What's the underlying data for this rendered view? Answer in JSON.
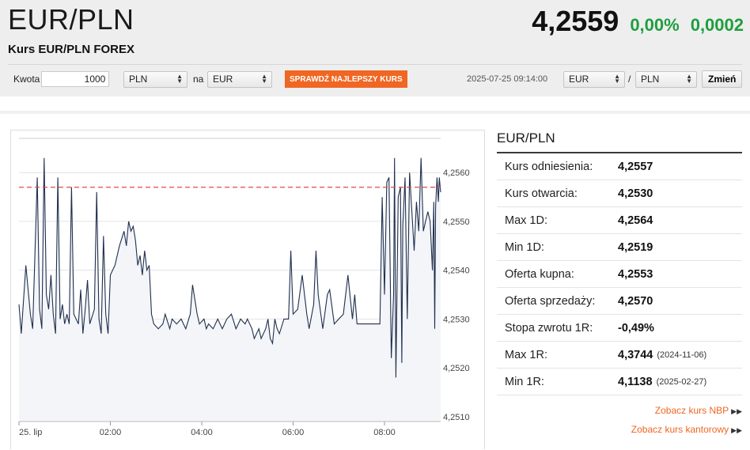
{
  "header": {
    "title": "EUR/PLN",
    "subtitle": "Kurs EUR/PLN FOREX",
    "price": "4,2559",
    "change_pct": "0,00%",
    "change_abs": "0,0002"
  },
  "converter": {
    "amount_label": "Kwota",
    "amount_value": "1000",
    "from_currency": "PLN",
    "to_label": "na",
    "to_currency": "EUR",
    "check_button": "SPRAWDŹ NAJLEPSZY KURS"
  },
  "pair_switch": {
    "timestamp": "2025-07-25 09:14:00",
    "base": "EUR",
    "slash": "/",
    "quote": "PLN",
    "change_button": "Zmień"
  },
  "side": {
    "title": "EUR/PLN",
    "rows": [
      {
        "label": "Kurs odniesienia:",
        "value": "4,2557",
        "date": ""
      },
      {
        "label": "Kurs otwarcia:",
        "value": "4,2530",
        "date": ""
      },
      {
        "label": "Max 1D:",
        "value": "4,2564",
        "date": ""
      },
      {
        "label": "Min 1D:",
        "value": "4,2519",
        "date": ""
      },
      {
        "label": "Oferta kupna:",
        "value": "4,2553",
        "date": ""
      },
      {
        "label": "Oferta sprzedaży:",
        "value": "4,2570",
        "date": ""
      },
      {
        "label": "Stopa zwrotu 1R:",
        "value": "-0,49%",
        "date": ""
      },
      {
        "label": "Max 1R:",
        "value": "4,3744",
        "date": "(2024-11-06)"
      },
      {
        "label": "Min 1R:",
        "value": "4,1138",
        "date": "(2025-02-27)"
      }
    ],
    "link_nbp": "Zobacz kurs NBP",
    "link_kantor": "Zobacz kurs kantorowy"
  },
  "colors": {
    "accent": "#f06623",
    "positive": "#1e9e3e",
    "line": "#1f2f4f",
    "reference": "#e0474c"
  },
  "chart_data": {
    "type": "line",
    "x_ticks": [
      "25. lip",
      "02:00",
      "04:00",
      "06:00",
      "08:00"
    ],
    "x_tick_hours": [
      0,
      2,
      4,
      6,
      8
    ],
    "y_ticks": [
      "4,2510",
      "4,2520",
      "4,2530",
      "4,2540",
      "4,2550",
      "4,2560"
    ],
    "y_tick_values": [
      4.251,
      4.252,
      4.253,
      4.254,
      4.255,
      4.256
    ],
    "ylim": [
      4.2509,
      4.2567
    ],
    "xlim": [
      0,
      9.23
    ],
    "reference_line": 4.2557,
    "series": [
      {
        "values": [
          [
            0.0,
            4.2533
          ],
          [
            0.05,
            4.2527
          ],
          [
            0.15,
            4.2541
          ],
          [
            0.25,
            4.2531
          ],
          [
            0.3,
            4.2528
          ],
          [
            0.4,
            4.2559
          ],
          [
            0.45,
            4.2532
          ],
          [
            0.5,
            4.2528
          ],
          [
            0.55,
            4.2563
          ],
          [
            0.6,
            4.2535
          ],
          [
            0.65,
            4.2532
          ],
          [
            0.7,
            4.2539
          ],
          [
            0.75,
            4.2531
          ],
          [
            0.8,
            4.2527
          ],
          [
            0.85,
            4.2559
          ],
          [
            0.9,
            4.253
          ],
          [
            0.95,
            4.2533
          ],
          [
            1.0,
            4.2529
          ],
          [
            1.05,
            4.2531
          ],
          [
            1.1,
            4.2529
          ],
          [
            1.15,
            4.2557
          ],
          [
            1.2,
            4.2531
          ],
          [
            1.3,
            4.2529
          ],
          [
            1.35,
            4.2536
          ],
          [
            1.4,
            4.2527
          ],
          [
            1.45,
            4.2532
          ],
          [
            1.5,
            4.2538
          ],
          [
            1.55,
            4.2529
          ],
          [
            1.65,
            4.2532
          ],
          [
            1.7,
            4.2556
          ],
          [
            1.75,
            4.253
          ],
          [
            1.8,
            4.2527
          ],
          [
            1.85,
            4.2547
          ],
          [
            1.9,
            4.2531
          ],
          [
            1.95,
            4.2527
          ],
          [
            2.0,
            4.2539
          ],
          [
            2.1,
            4.2541
          ],
          [
            2.2,
            4.2545
          ],
          [
            2.3,
            4.2548
          ],
          [
            2.35,
            4.2545
          ],
          [
            2.4,
            4.255
          ],
          [
            2.45,
            4.2548
          ],
          [
            2.5,
            4.2549
          ],
          [
            2.55,
            4.2546
          ],
          [
            2.6,
            4.2541
          ],
          [
            2.65,
            4.2543
          ],
          [
            2.7,
            4.2539
          ],
          [
            2.75,
            4.2544
          ],
          [
            2.8,
            4.254
          ],
          [
            2.85,
            4.2541
          ],
          [
            2.9,
            4.2531
          ],
          [
            2.95,
            4.2529
          ],
          [
            3.05,
            4.2528
          ],
          [
            3.15,
            4.2529
          ],
          [
            3.2,
            4.2531
          ],
          [
            3.3,
            4.2528
          ],
          [
            3.35,
            4.253
          ],
          [
            3.45,
            4.2529
          ],
          [
            3.55,
            4.253
          ],
          [
            3.65,
            4.2528
          ],
          [
            3.75,
            4.2531
          ],
          [
            3.8,
            4.2537
          ],
          [
            3.9,
            4.2531
          ],
          [
            3.95,
            4.2529
          ],
          [
            4.05,
            4.253
          ],
          [
            4.1,
            4.2528
          ],
          [
            4.15,
            4.2529
          ],
          [
            4.25,
            4.2528
          ],
          [
            4.35,
            4.253
          ],
          [
            4.45,
            4.2528
          ],
          [
            4.55,
            4.253
          ],
          [
            4.65,
            4.2531
          ],
          [
            4.75,
            4.2528
          ],
          [
            4.85,
            4.253
          ],
          [
            4.95,
            4.2529
          ],
          [
            5.0,
            4.253
          ],
          [
            5.1,
            4.2528
          ],
          [
            5.15,
            4.2526
          ],
          [
            5.25,
            4.2528
          ],
          [
            5.3,
            4.2526
          ],
          [
            5.4,
            4.2528
          ],
          [
            5.45,
            4.253
          ],
          [
            5.5,
            4.2526
          ],
          [
            5.55,
            4.2525
          ],
          [
            5.6,
            4.253
          ],
          [
            5.65,
            4.2528
          ],
          [
            5.7,
            4.2527
          ],
          [
            5.8,
            4.253
          ],
          [
            5.9,
            4.253
          ],
          [
            5.95,
            4.2544
          ],
          [
            6.0,
            4.2531
          ],
          [
            6.1,
            4.2532
          ],
          [
            6.2,
            4.2539
          ],
          [
            6.3,
            4.2531
          ],
          [
            6.35,
            4.2528
          ],
          [
            6.45,
            4.2533
          ],
          [
            6.5,
            4.2544
          ],
          [
            6.55,
            4.2535
          ],
          [
            6.65,
            4.2528
          ],
          [
            6.75,
            4.2535
          ],
          [
            6.8,
            4.2536
          ],
          [
            6.9,
            4.2529
          ],
          [
            7.0,
            4.253
          ],
          [
            7.1,
            4.2531
          ],
          [
            7.2,
            4.2539
          ],
          [
            7.3,
            4.253
          ],
          [
            7.35,
            4.2535
          ],
          [
            7.4,
            4.2529
          ],
          [
            7.5,
            4.2529
          ],
          [
            7.6,
            4.2529
          ],
          [
            7.7,
            4.2529
          ],
          [
            7.8,
            4.2529
          ],
          [
            7.9,
            4.2529
          ],
          [
            7.95,
            4.2555
          ],
          [
            8.0,
            4.2535
          ],
          [
            8.05,
            4.2558
          ],
          [
            8.1,
            4.2559
          ],
          [
            8.15,
            4.2522
          ],
          [
            8.2,
            4.2535
          ],
          [
            8.22,
            4.2563
          ],
          [
            8.25,
            4.2518
          ],
          [
            8.3,
            4.2555
          ],
          [
            8.35,
            4.2557
          ],
          [
            8.38,
            4.2521
          ],
          [
            8.4,
            4.2549
          ],
          [
            8.45,
            4.2559
          ],
          [
            8.5,
            4.253
          ],
          [
            8.55,
            4.256
          ],
          [
            8.6,
            4.2552
          ],
          [
            8.65,
            4.2544
          ],
          [
            8.7,
            4.2554
          ],
          [
            8.75,
            4.2548
          ],
          [
            8.8,
            4.2563
          ],
          [
            8.85,
            4.2548
          ],
          [
            8.9,
            4.255
          ],
          [
            8.95,
            4.2552
          ],
          [
            9.0,
            4.255
          ],
          [
            9.05,
            4.254
          ],
          [
            9.08,
            4.2554
          ],
          [
            9.1,
            4.2528
          ],
          [
            9.12,
            4.2553
          ],
          [
            9.15,
            4.2559
          ],
          [
            9.18,
            4.2554
          ],
          [
            9.2,
            4.2559
          ],
          [
            9.23,
            4.2556
          ]
        ]
      }
    ]
  }
}
